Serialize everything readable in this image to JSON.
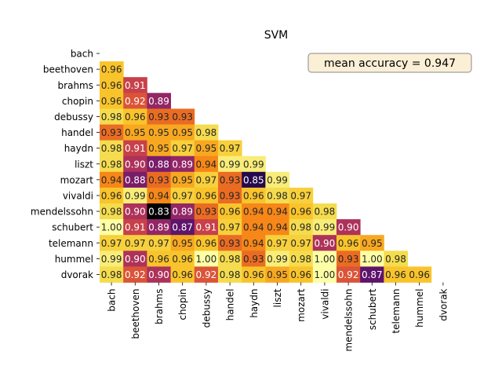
{
  "chart_data": {
    "type": "heatmap",
    "title": "SVM",
    "annotation": "mean accuracy = 0.947",
    "annotation_box_fill": "#fbefd6",
    "annotation_box_stroke": "#8a8a8a",
    "colormap": "inferno",
    "color_range": [
      0.83,
      1.0
    ],
    "labels": [
      "bach",
      "beethoven",
      "brahms",
      "chopin",
      "debussy",
      "handel",
      "haydn",
      "liszt",
      "mozart",
      "vivaldi",
      "mendelssohn",
      "schubert",
      "telemann",
      "hummel",
      "dvorak"
    ],
    "lower_triangle_values": [
      [],
      [
        0.96
      ],
      [
        0.96,
        0.91
      ],
      [
        0.96,
        0.92,
        0.89
      ],
      [
        0.98,
        0.96,
        0.93,
        0.93
      ],
      [
        0.93,
        0.95,
        0.95,
        0.95,
        0.98
      ],
      [
        0.98,
        0.91,
        0.95,
        0.97,
        0.95,
        0.97
      ],
      [
        0.98,
        0.9,
        0.88,
        0.89,
        0.94,
        0.99,
        0.99
      ],
      [
        0.94,
        0.88,
        0.93,
        0.95,
        0.97,
        0.93,
        0.85,
        0.99
      ],
      [
        0.96,
        0.99,
        0.94,
        0.97,
        0.96,
        0.93,
        0.96,
        0.98,
        0.97
      ],
      [
        0.98,
        0.9,
        0.83,
        0.89,
        0.93,
        0.96,
        0.94,
        0.94,
        0.96,
        0.98
      ],
      [
        1.0,
        0.91,
        0.89,
        0.87,
        0.91,
        0.97,
        0.94,
        0.94,
        0.98,
        0.99,
        0.9
      ],
      [
        0.97,
        0.97,
        0.97,
        0.95,
        0.96,
        0.93,
        0.94,
        0.97,
        0.97,
        0.9,
        0.96,
        0.95
      ],
      [
        0.99,
        0.9,
        0.96,
        0.96,
        1.0,
        0.98,
        0.93,
        0.99,
        0.98,
        1.0,
        0.93,
        1.0,
        0.98
      ],
      [
        0.98,
        0.92,
        0.9,
        0.96,
        0.92,
        0.98,
        0.96,
        0.95,
        0.96,
        1.0,
        0.92,
        0.87,
        0.96,
        0.96
      ]
    ],
    "value_format_decimals": 2
  }
}
